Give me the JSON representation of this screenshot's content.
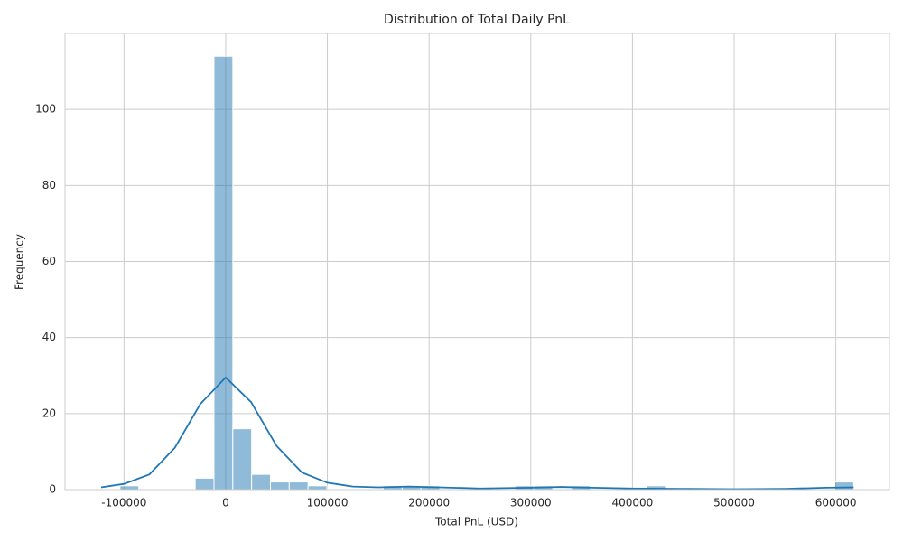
{
  "chart_data": {
    "type": "histogram",
    "title": "Distribution of Total Daily PnL",
    "xlabel": "Total PnL (USD)",
    "ylabel": "Frequency",
    "bins": [
      -104000,
      -85500,
      -67000,
      -48500,
      -30000,
      -11500,
      7000,
      25500,
      44000,
      62500,
      81000,
      99500,
      118000,
      136500,
      155000,
      173500,
      192000,
      210500,
      229000,
      247500,
      266000,
      284500,
      303000,
      321500,
      340000,
      358500,
      377000,
      395500,
      414000,
      432500,
      451000,
      469500,
      488000,
      506500,
      525000,
      543500,
      562000,
      580500,
      599000,
      617500
    ],
    "counts": [
      1,
      0,
      0,
      0,
      3,
      114,
      16,
      4,
      2,
      2,
      1,
      0,
      0,
      0,
      1,
      1,
      1,
      0,
      0,
      0,
      0,
      1,
      1,
      0,
      1,
      0,
      0,
      0,
      1,
      0,
      0,
      0,
      0,
      0,
      0,
      0,
      0,
      0,
      2
    ],
    "color": "#1f77b4",
    "kde": {
      "x": [
        -122500,
        -100000,
        -75000,
        -50000,
        -25000,
        0,
        25000,
        50000,
        75000,
        100000,
        125000,
        150000,
        180000,
        210000,
        250000,
        300000,
        330000,
        360000,
        400000,
        450000,
        500000,
        550000,
        590000,
        617500
      ],
      "values": [
        0.6,
        1.5,
        4,
        11,
        22.5,
        29.5,
        23,
        11.5,
        4.5,
        1.8,
        0.8,
        0.6,
        0.8,
        0.6,
        0.3,
        0.5,
        0.7,
        0.5,
        0.3,
        0.2,
        0.1,
        0.2,
        0.5,
        0.6
      ],
      "color": "#1f77b4"
    },
    "xlim": [
      -158000,
      652700
    ],
    "ylim": [
      0,
      120
    ],
    "xticks": [
      -100000,
      0,
      100000,
      200000,
      300000,
      400000,
      500000,
      600000
    ],
    "yticks": [
      0,
      20,
      40,
      60,
      80,
      100
    ],
    "grid": true
  }
}
